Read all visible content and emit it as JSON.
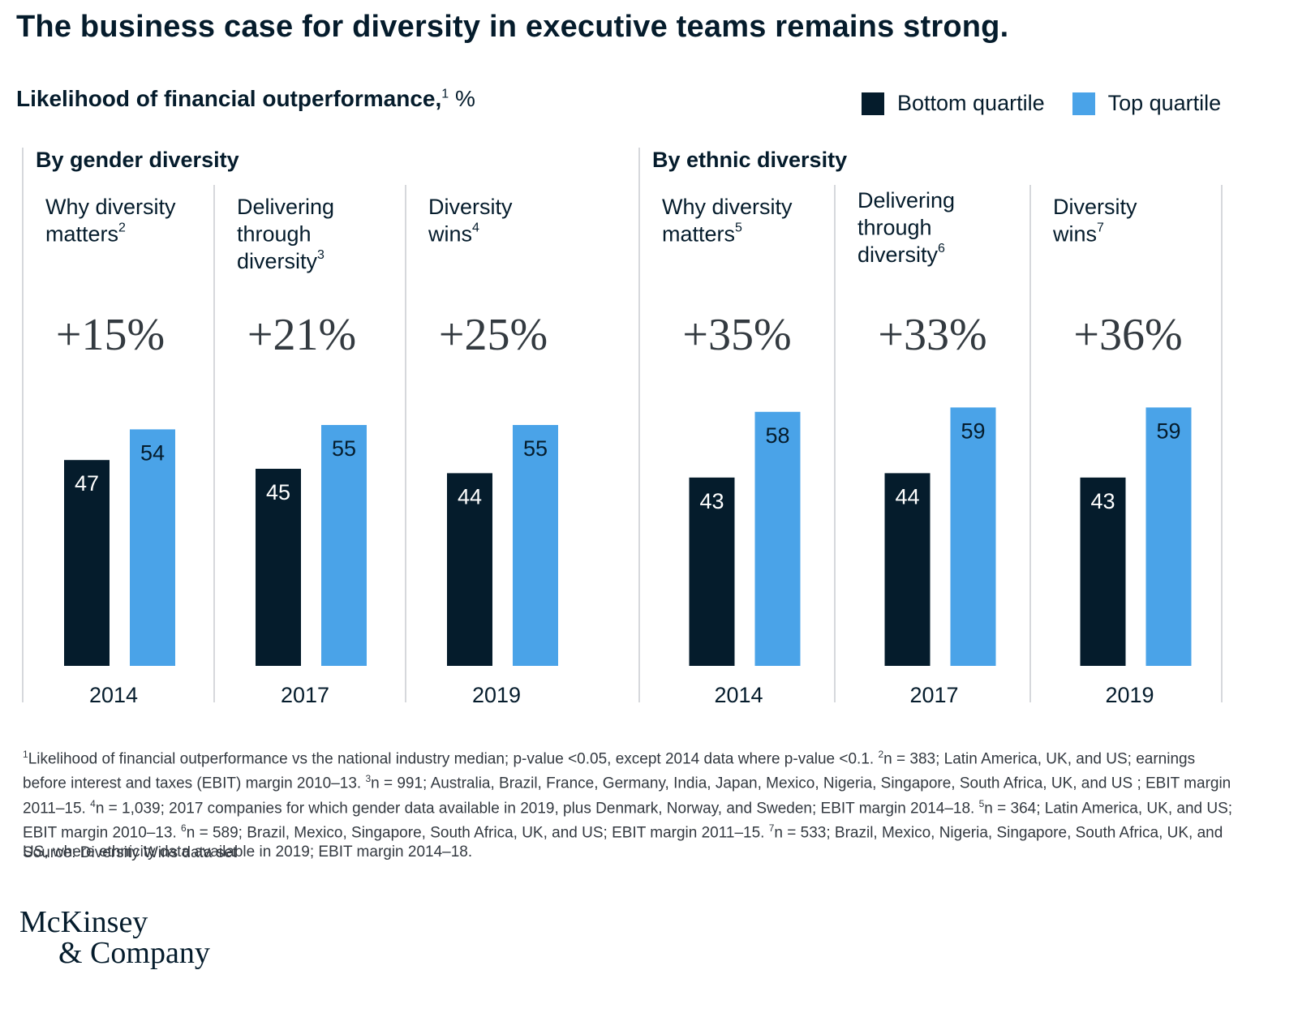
{
  "title": "The business case for diversity in executive teams remains strong.",
  "subtitle": {
    "text": "Likelihood of financial outperformance,",
    "sup": "1",
    "unit": "%"
  },
  "legend": [
    {
      "label": "Bottom quartile",
      "color": "#051c2c"
    },
    {
      "label": "Top quartile",
      "color": "#4aa3e8"
    }
  ],
  "chart_data": {
    "type": "bar",
    "series": [
      {
        "name": "Bottom quartile",
        "color": "#051c2c"
      },
      {
        "name": "Top quartile",
        "color": "#4aa3e8"
      }
    ],
    "groups": [
      {
        "label": "By gender diversity",
        "panels": [
          {
            "title": [
              "Why diversity",
              "matters"
            ],
            "sup": "2",
            "delta": "+15%",
            "year": "2014",
            "values": [
              47,
              54
            ]
          },
          {
            "title": [
              "Delivering",
              "through",
              "diversity"
            ],
            "sup": "3",
            "delta": "+21%",
            "year": "2017",
            "values": [
              45,
              55
            ]
          },
          {
            "title": [
              "Diversity",
              "wins"
            ],
            "sup": "4",
            "delta": "+25%",
            "year": "2019",
            "values": [
              44,
              55
            ]
          }
        ]
      },
      {
        "label": "By ethnic diversity",
        "panels": [
          {
            "title": [
              "Why diversity",
              "matters"
            ],
            "sup": "5",
            "delta": "+35%",
            "year": "2014",
            "values": [
              43,
              58
            ]
          },
          {
            "title": [
              "Delivering",
              "through",
              "diversity"
            ],
            "sup": "6",
            "delta": "+33%",
            "year": "2017",
            "values": [
              44,
              59
            ]
          },
          {
            "title": [
              "Diversity",
              "wins"
            ],
            "sup": "7",
            "delta": "+36%",
            "year": "2019",
            "values": [
              43,
              59
            ]
          }
        ]
      }
    ],
    "bar_label_colors": {
      "bottom": "#ffffff",
      "top": "#051c2c"
    }
  },
  "footnotes": [
    {
      "sup": "1",
      "text": "Likelihood of financial outperformance vs the national industry median; p-value <0.05, except 2014 data where p-value <0.1. "
    },
    {
      "sup": "2",
      "text": "n = 383; Latin America, UK, and US; earnings before interest and taxes (EBIT) margin 2010–13. "
    },
    {
      "sup": "3",
      "text": "n = 991; Australia, Brazil, France, Germany, India, Japan, Mexico, Nigeria, Singapore, South Africa, UK, and US ; EBIT margin 2011–15. "
    },
    {
      "sup": "4",
      "text": "n = 1,039; 2017 companies for which gender data available in 2019, plus Denmark, Norway, and Sweden;  EBIT margin 2014–18. "
    },
    {
      "sup": "5",
      "text": "n = 364; Latin America, UK, and US; EBIT margin 2010–13. "
    },
    {
      "sup": "6",
      "text": "n = 589; Brazil, Mexico, Singapore, South Africa, UK, and US; EBIT margin 2011–15. "
    },
    {
      "sup": "7",
      "text": "n = 533; Brazil, Mexico, Nigeria, Singapore, South Africa, UK, and US, where ethnicity data available in 2019; EBIT margin 2014–18."
    }
  ],
  "source": "Source: Diversity Wins data set",
  "logo": {
    "line1": "McKinsey",
    "line2": "& Company"
  }
}
